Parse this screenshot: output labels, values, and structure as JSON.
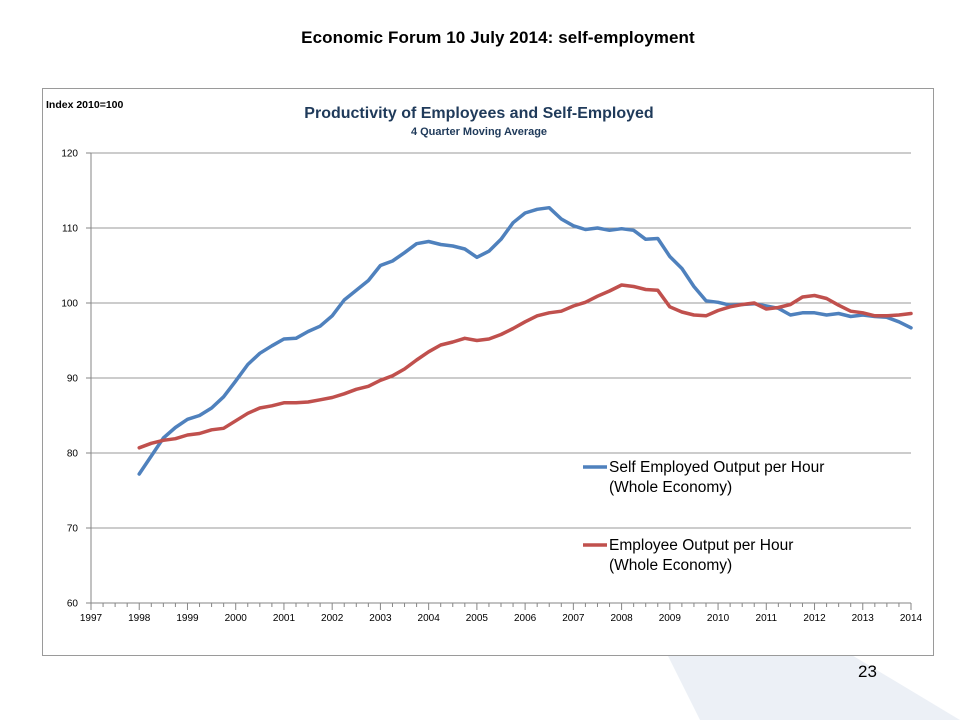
{
  "slide": {
    "title": "Economic Forum 10 July 2014: self-employment",
    "page_number": "23"
  },
  "chart_data": {
    "type": "line",
    "title": "Productivity of Employees and Self-Employed",
    "subtitle": "4 Quarter Moving Average",
    "ylabel": "Index 2010=100",
    "xlabel": "",
    "xlim": [
      1997,
      2014
    ],
    "ylim": [
      60,
      120
    ],
    "yticks": [
      60,
      70,
      80,
      90,
      100,
      110,
      120
    ],
    "xticks": [
      "1997",
      "1998",
      "1999",
      "2000",
      "2001",
      "2002",
      "2003",
      "2004",
      "2005",
      "2006",
      "2007",
      "2008",
      "2009",
      "2010",
      "2011",
      "2012",
      "2013",
      "2014"
    ],
    "grid": "horizontal",
    "legend_position": "bottom-right",
    "colors": {
      "self_employed": "#4f81bd",
      "employee": "#c0504d"
    },
    "series": [
      {
        "name": "Self Employed Output per Hour (Whole Economy)",
        "x": [
          1998.0,
          1998.25,
          1998.5,
          1998.75,
          1999.0,
          1999.25,
          1999.5,
          1999.75,
          2000.0,
          2000.25,
          2000.5,
          2000.75,
          2001.0,
          2001.25,
          2001.5,
          2001.75,
          2002.0,
          2002.25,
          2002.5,
          2002.75,
          2003.0,
          2003.25,
          2003.5,
          2003.75,
          2004.0,
          2004.25,
          2004.5,
          2004.75,
          2005.0,
          2005.25,
          2005.5,
          2005.75,
          2006.0,
          2006.25,
          2006.5,
          2006.75,
          2007.0,
          2007.25,
          2007.5,
          2007.75,
          2008.0,
          2008.25,
          2008.5,
          2008.75,
          2009.0,
          2009.25,
          2009.5,
          2009.75,
          2010.0,
          2010.25,
          2010.5,
          2010.75,
          2011.0,
          2011.25,
          2011.5,
          2011.75,
          2012.0,
          2012.25,
          2012.5,
          2012.75,
          2013.0,
          2013.25,
          2013.5,
          2013.75,
          2014.0
        ],
        "values": [
          77.2,
          79.6,
          82.0,
          83.4,
          84.5,
          85.0,
          86.0,
          87.5,
          89.6,
          91.8,
          93.3,
          94.3,
          95.2,
          95.3,
          96.2,
          96.9,
          98.3,
          100.4,
          101.7,
          103.0,
          105.0,
          105.6,
          106.7,
          107.9,
          108.2,
          107.8,
          107.6,
          107.2,
          106.1,
          106.9,
          108.5,
          110.7,
          112.0,
          112.5,
          112.7,
          111.2,
          110.3,
          109.8,
          110.0,
          109.7,
          109.9,
          109.7,
          108.5,
          108.6,
          106.2,
          104.6,
          102.2,
          100.3,
          100.1,
          99.7,
          99.8,
          99.9,
          99.6,
          99.3,
          98.4,
          98.7,
          98.7,
          98.4,
          98.6,
          98.2,
          98.4,
          98.2,
          98.1,
          97.5,
          96.7
        ]
      },
      {
        "name": "Employee Output per Hour (Whole Economy)",
        "x": [
          1998.0,
          1998.25,
          1998.5,
          1998.75,
          1999.0,
          1999.25,
          1999.5,
          1999.75,
          2000.0,
          2000.25,
          2000.5,
          2000.75,
          2001.0,
          2001.25,
          2001.5,
          2001.75,
          2002.0,
          2002.25,
          2002.5,
          2002.75,
          2003.0,
          2003.25,
          2003.5,
          2003.75,
          2004.0,
          2004.25,
          2004.5,
          2004.75,
          2005.0,
          2005.25,
          2005.5,
          2005.75,
          2006.0,
          2006.25,
          2006.5,
          2006.75,
          2007.0,
          2007.25,
          2007.5,
          2007.75,
          2008.0,
          2008.25,
          2008.5,
          2008.75,
          2009.0,
          2009.25,
          2009.5,
          2009.75,
          2010.0,
          2010.25,
          2010.5,
          2010.75,
          2011.0,
          2011.25,
          2011.5,
          2011.75,
          2012.0,
          2012.25,
          2012.5,
          2012.75,
          2013.0,
          2013.25,
          2013.5,
          2013.75,
          2014.0
        ],
        "values": [
          80.7,
          81.3,
          81.7,
          81.9,
          82.4,
          82.6,
          83.1,
          83.3,
          84.3,
          85.3,
          86.0,
          86.3,
          86.7,
          86.7,
          86.8,
          87.1,
          87.4,
          87.9,
          88.5,
          88.9,
          89.7,
          90.3,
          91.2,
          92.4,
          93.5,
          94.4,
          94.8,
          95.3,
          95.0,
          95.2,
          95.8,
          96.6,
          97.5,
          98.3,
          98.7,
          98.9,
          99.6,
          100.1,
          100.9,
          101.6,
          102.4,
          102.2,
          101.8,
          101.7,
          99.5,
          98.8,
          98.4,
          98.3,
          99.0,
          99.5,
          99.8,
          100.0,
          99.2,
          99.4,
          99.8,
          100.8,
          101.0,
          100.6,
          99.7,
          98.9,
          98.7,
          98.3,
          98.3,
          98.4,
          98.6
        ]
      }
    ]
  }
}
